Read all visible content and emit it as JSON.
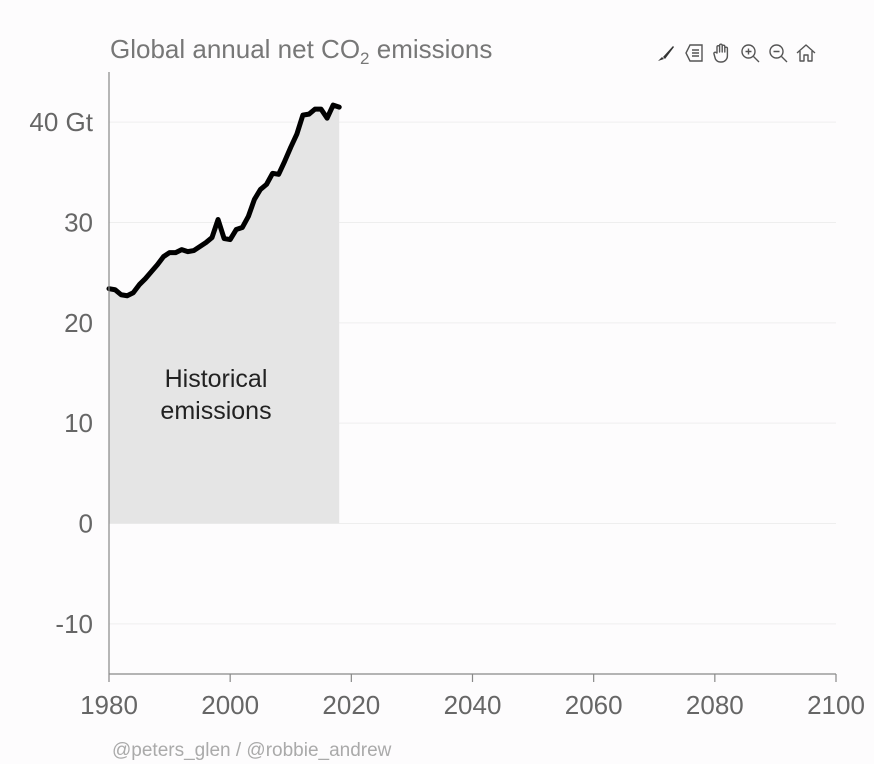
{
  "title": {
    "prefix": "Global annual net CO",
    "subscript": "2",
    "suffix": " emissions"
  },
  "toolbar": {
    "items": [
      {
        "name": "brush-icon"
      },
      {
        "name": "data-view-icon"
      },
      {
        "name": "pan-hand-icon"
      },
      {
        "name": "zoom-in-icon"
      },
      {
        "name": "zoom-out-icon"
      },
      {
        "name": "home-icon"
      }
    ]
  },
  "credit": "@peters_glen / @robbie_andrew",
  "chart_data": {
    "type": "area",
    "title": "Global annual net CO2 emissions",
    "xlabel": "",
    "ylabel": "",
    "xlim": [
      1980,
      2100
    ],
    "ylim": [
      -15,
      45
    ],
    "x_ticks": [
      1980,
      2000,
      2020,
      2040,
      2060,
      2080,
      2100
    ],
    "y_ticks": [
      -10,
      0,
      10,
      20,
      30,
      40
    ],
    "y_tick_labels": [
      "-10",
      "0",
      "10",
      "20",
      "30",
      "40 Gt"
    ],
    "grid": true,
    "colors": {
      "line": "#000000",
      "area": "#e5e5e5",
      "grid": "#eeeeee",
      "axis": "#888888"
    },
    "series": [
      {
        "x": [
          1980,
          1981,
          1982,
          1983,
          1984,
          1985,
          1986,
          1987,
          1988,
          1989,
          1990,
          1991,
          1992,
          1993,
          1994,
          1995,
          1996,
          1997,
          1998,
          1999,
          2000,
          2001,
          2002,
          2003,
          2004,
          2005,
          2006,
          2007,
          2008,
          2009,
          2010,
          2011,
          2012,
          2013,
          2014,
          2015,
          2016,
          2017,
          2018
        ],
        "y": [
          23.4,
          23.3,
          22.8,
          22.7,
          23.0,
          23.8,
          24.4,
          25.1,
          25.8,
          26.6,
          27.0,
          27.0,
          27.3,
          27.1,
          27.2,
          27.6,
          28.0,
          28.5,
          30.3,
          28.4,
          28.3,
          29.3,
          29.5,
          30.6,
          32.3,
          33.3,
          33.8,
          34.9,
          34.8,
          36.1,
          37.5,
          38.8,
          40.7,
          40.8,
          41.3,
          41.3,
          40.4,
          41.7,
          41.5
        ]
      }
    ],
    "annotations": [
      {
        "text": [
          "Historical",
          "emissions"
        ],
        "x": 1997,
        "y": 13
      }
    ]
  }
}
